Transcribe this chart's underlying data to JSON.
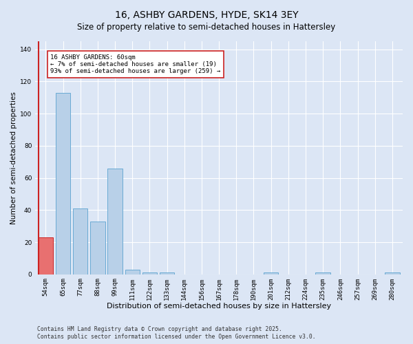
{
  "title": "16, ASHBY GARDENS, HYDE, SK14 3EY",
  "subtitle": "Size of property relative to semi-detached houses in Hattersley",
  "xlabel": "Distribution of semi-detached houses by size in Hattersley",
  "ylabel": "Number of semi-detached properties",
  "categories": [
    "54sqm",
    "65sqm",
    "77sqm",
    "88sqm",
    "99sqm",
    "111sqm",
    "122sqm",
    "133sqm",
    "144sqm",
    "156sqm",
    "167sqm",
    "178sqm",
    "190sqm",
    "201sqm",
    "212sqm",
    "224sqm",
    "235sqm",
    "246sqm",
    "257sqm",
    "269sqm",
    "280sqm"
  ],
  "values": [
    23,
    113,
    41,
    33,
    66,
    3,
    1,
    1,
    0,
    0,
    0,
    0,
    0,
    1,
    0,
    0,
    1,
    0,
    0,
    0,
    1
  ],
  "bar_color": "#b8d0e8",
  "bar_edge_color": "#6aaad4",
  "highlight_bar_index": 0,
  "highlight_color": "#e87070",
  "highlight_edge_color": "#cc2222",
  "vline_color": "#cc2222",
  "annotation_text": "16 ASHBY GARDENS: 60sqm\n← 7% of semi-detached houses are smaller (19)\n93% of semi-detached houses are larger (259) →",
  "annotation_box_color": "#ffffff",
  "annotation_box_edge": "#cc2222",
  "ylim": [
    0,
    145
  ],
  "yticks": [
    0,
    20,
    40,
    60,
    80,
    100,
    120,
    140
  ],
  "background_color": "#dce6f5",
  "plot_background": "#dce6f5",
  "grid_color": "#ffffff",
  "footer_line1": "Contains HM Land Registry data © Crown copyright and database right 2025.",
  "footer_line2": "Contains public sector information licensed under the Open Government Licence v3.0.",
  "title_fontsize": 10,
  "subtitle_fontsize": 8.5,
  "xlabel_fontsize": 8,
  "ylabel_fontsize": 7.5,
  "tick_fontsize": 6.5,
  "annotation_fontsize": 6.5,
  "footer_fontsize": 5.8
}
